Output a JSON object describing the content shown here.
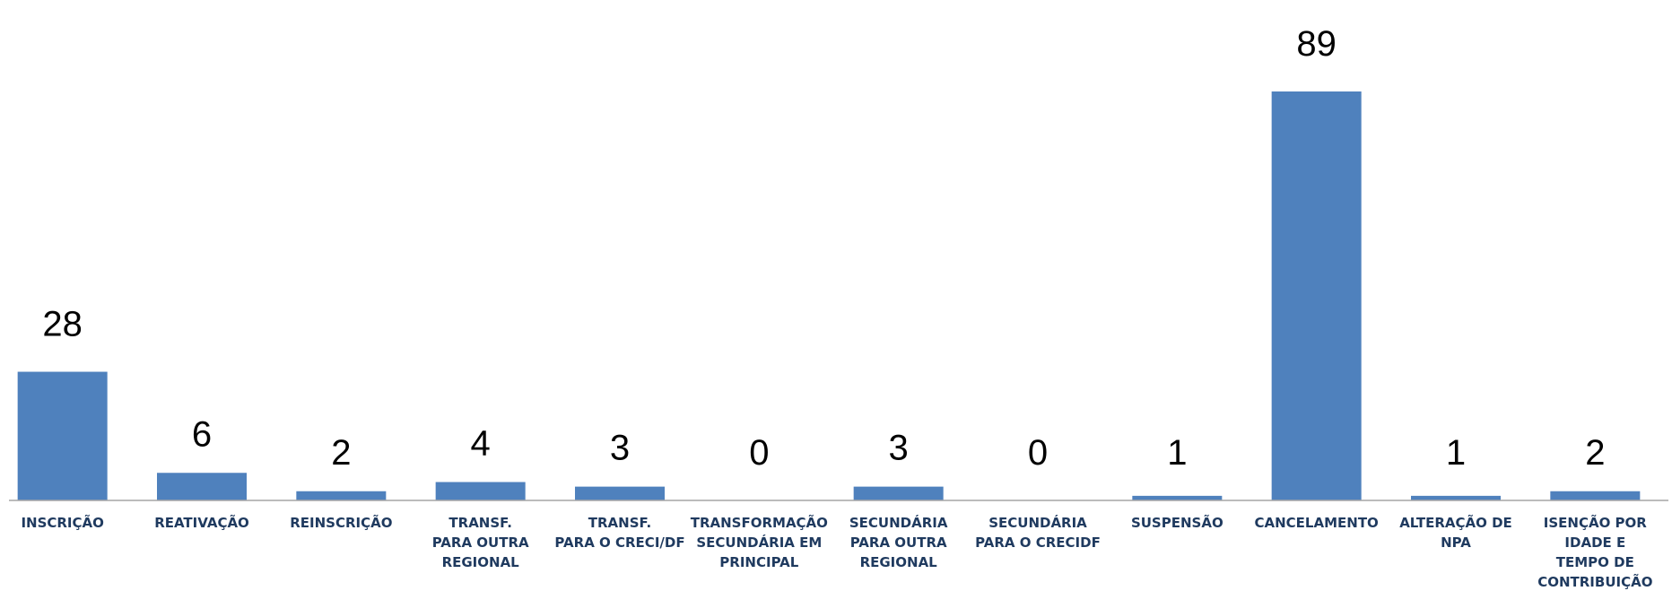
{
  "chart_data": {
    "type": "bar",
    "title": "",
    "xlabel": "",
    "ylabel": "",
    "ylim": [
      0,
      89
    ],
    "grid": false,
    "legend": "none",
    "bar_color": "#4f81bd",
    "axis_color": "#a6a6a6",
    "label_color": "#1f3a5f",
    "categories": [
      [
        "INSCRIÇÃO"
      ],
      [
        "REATIVAÇÃO"
      ],
      [
        "REINSCRIÇÃO"
      ],
      [
        "TRANSF.",
        "PARA OUTRA",
        "REGIONAL"
      ],
      [
        "TRANSF.",
        "PARA O CRECI/DF"
      ],
      [
        "TRANSFORMAÇÃO",
        "SECUNDÁRIA EM",
        "PRINCIPAL"
      ],
      [
        "SECUNDÁRIA",
        "PARA OUTRA",
        "REGIONAL"
      ],
      [
        "SECUNDÁRIA",
        "PARA O CRECIDF"
      ],
      [
        "SUSPENSÃO"
      ],
      [
        "CANCELAMENTO"
      ],
      [
        "ALTERAÇÃO DE",
        "NPA"
      ],
      [
        "ISENÇÃO POR",
        "IDADE E",
        "TEMPO DE",
        "CONTRIBUIÇÃO"
      ]
    ],
    "values": [
      28,
      6,
      2,
      4,
      3,
      0,
      3,
      0,
      1,
      89,
      1,
      2
    ],
    "data_labels": [
      "28",
      "6",
      "2",
      "4",
      "3",
      "0",
      "3",
      "0",
      "1",
      "89",
      "1",
      "2"
    ]
  }
}
